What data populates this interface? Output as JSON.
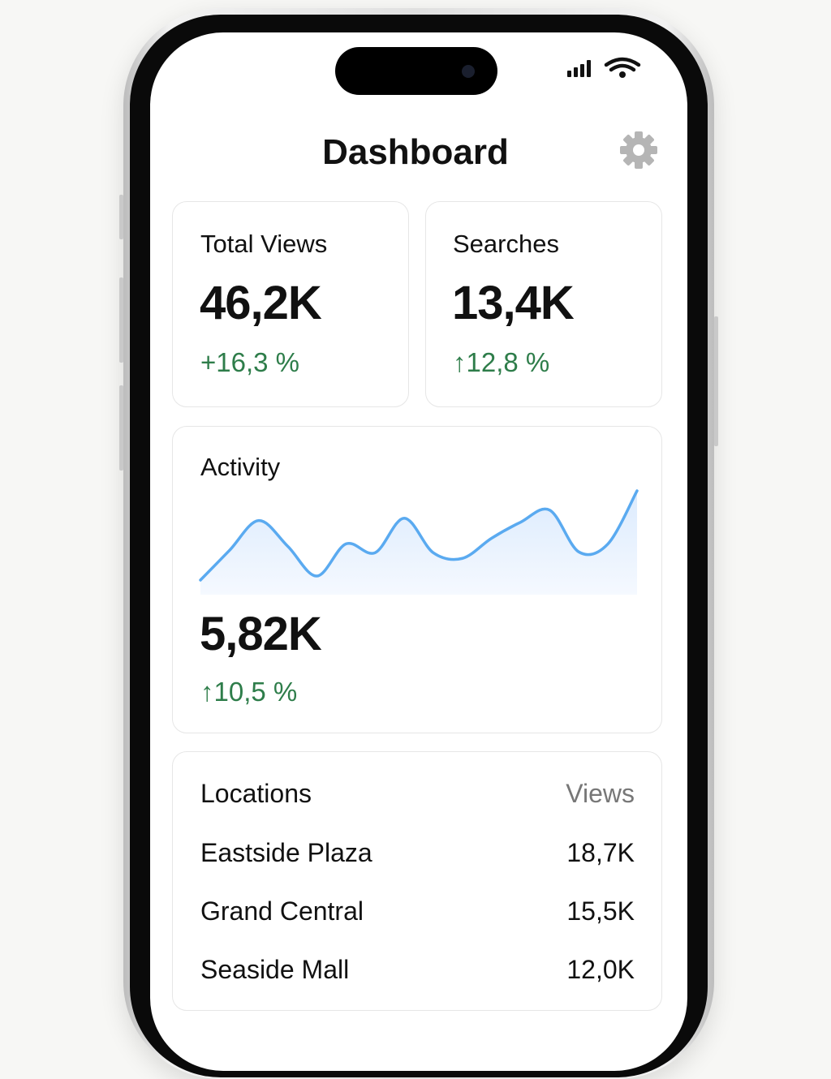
{
  "header": {
    "title": "Dashboard"
  },
  "cards": [
    {
      "label": "Total Views",
      "value": "46,2K",
      "change": "+16,3 %"
    },
    {
      "label": "Searches",
      "value": "13,4K",
      "change": "↑12,8 %"
    }
  ],
  "activity": {
    "label": "Activity",
    "value": "5,82K",
    "change": "↑10,5 %",
    "sparkline": {
      "type": "line",
      "color": "#5aaaf0",
      "values": [
        18,
        55,
        92,
        60,
        23,
        63,
        52,
        95,
        52,
        45,
        70,
        90,
        105,
        53,
        63,
        129
      ]
    }
  },
  "locations": {
    "header": [
      "Locations",
      "Views"
    ],
    "rows": [
      [
        "Eastside Plaza",
        "18,7K"
      ],
      [
        "Grand Central",
        "15,5K"
      ],
      [
        "Seaside Mall",
        "12,0K"
      ]
    ]
  }
}
